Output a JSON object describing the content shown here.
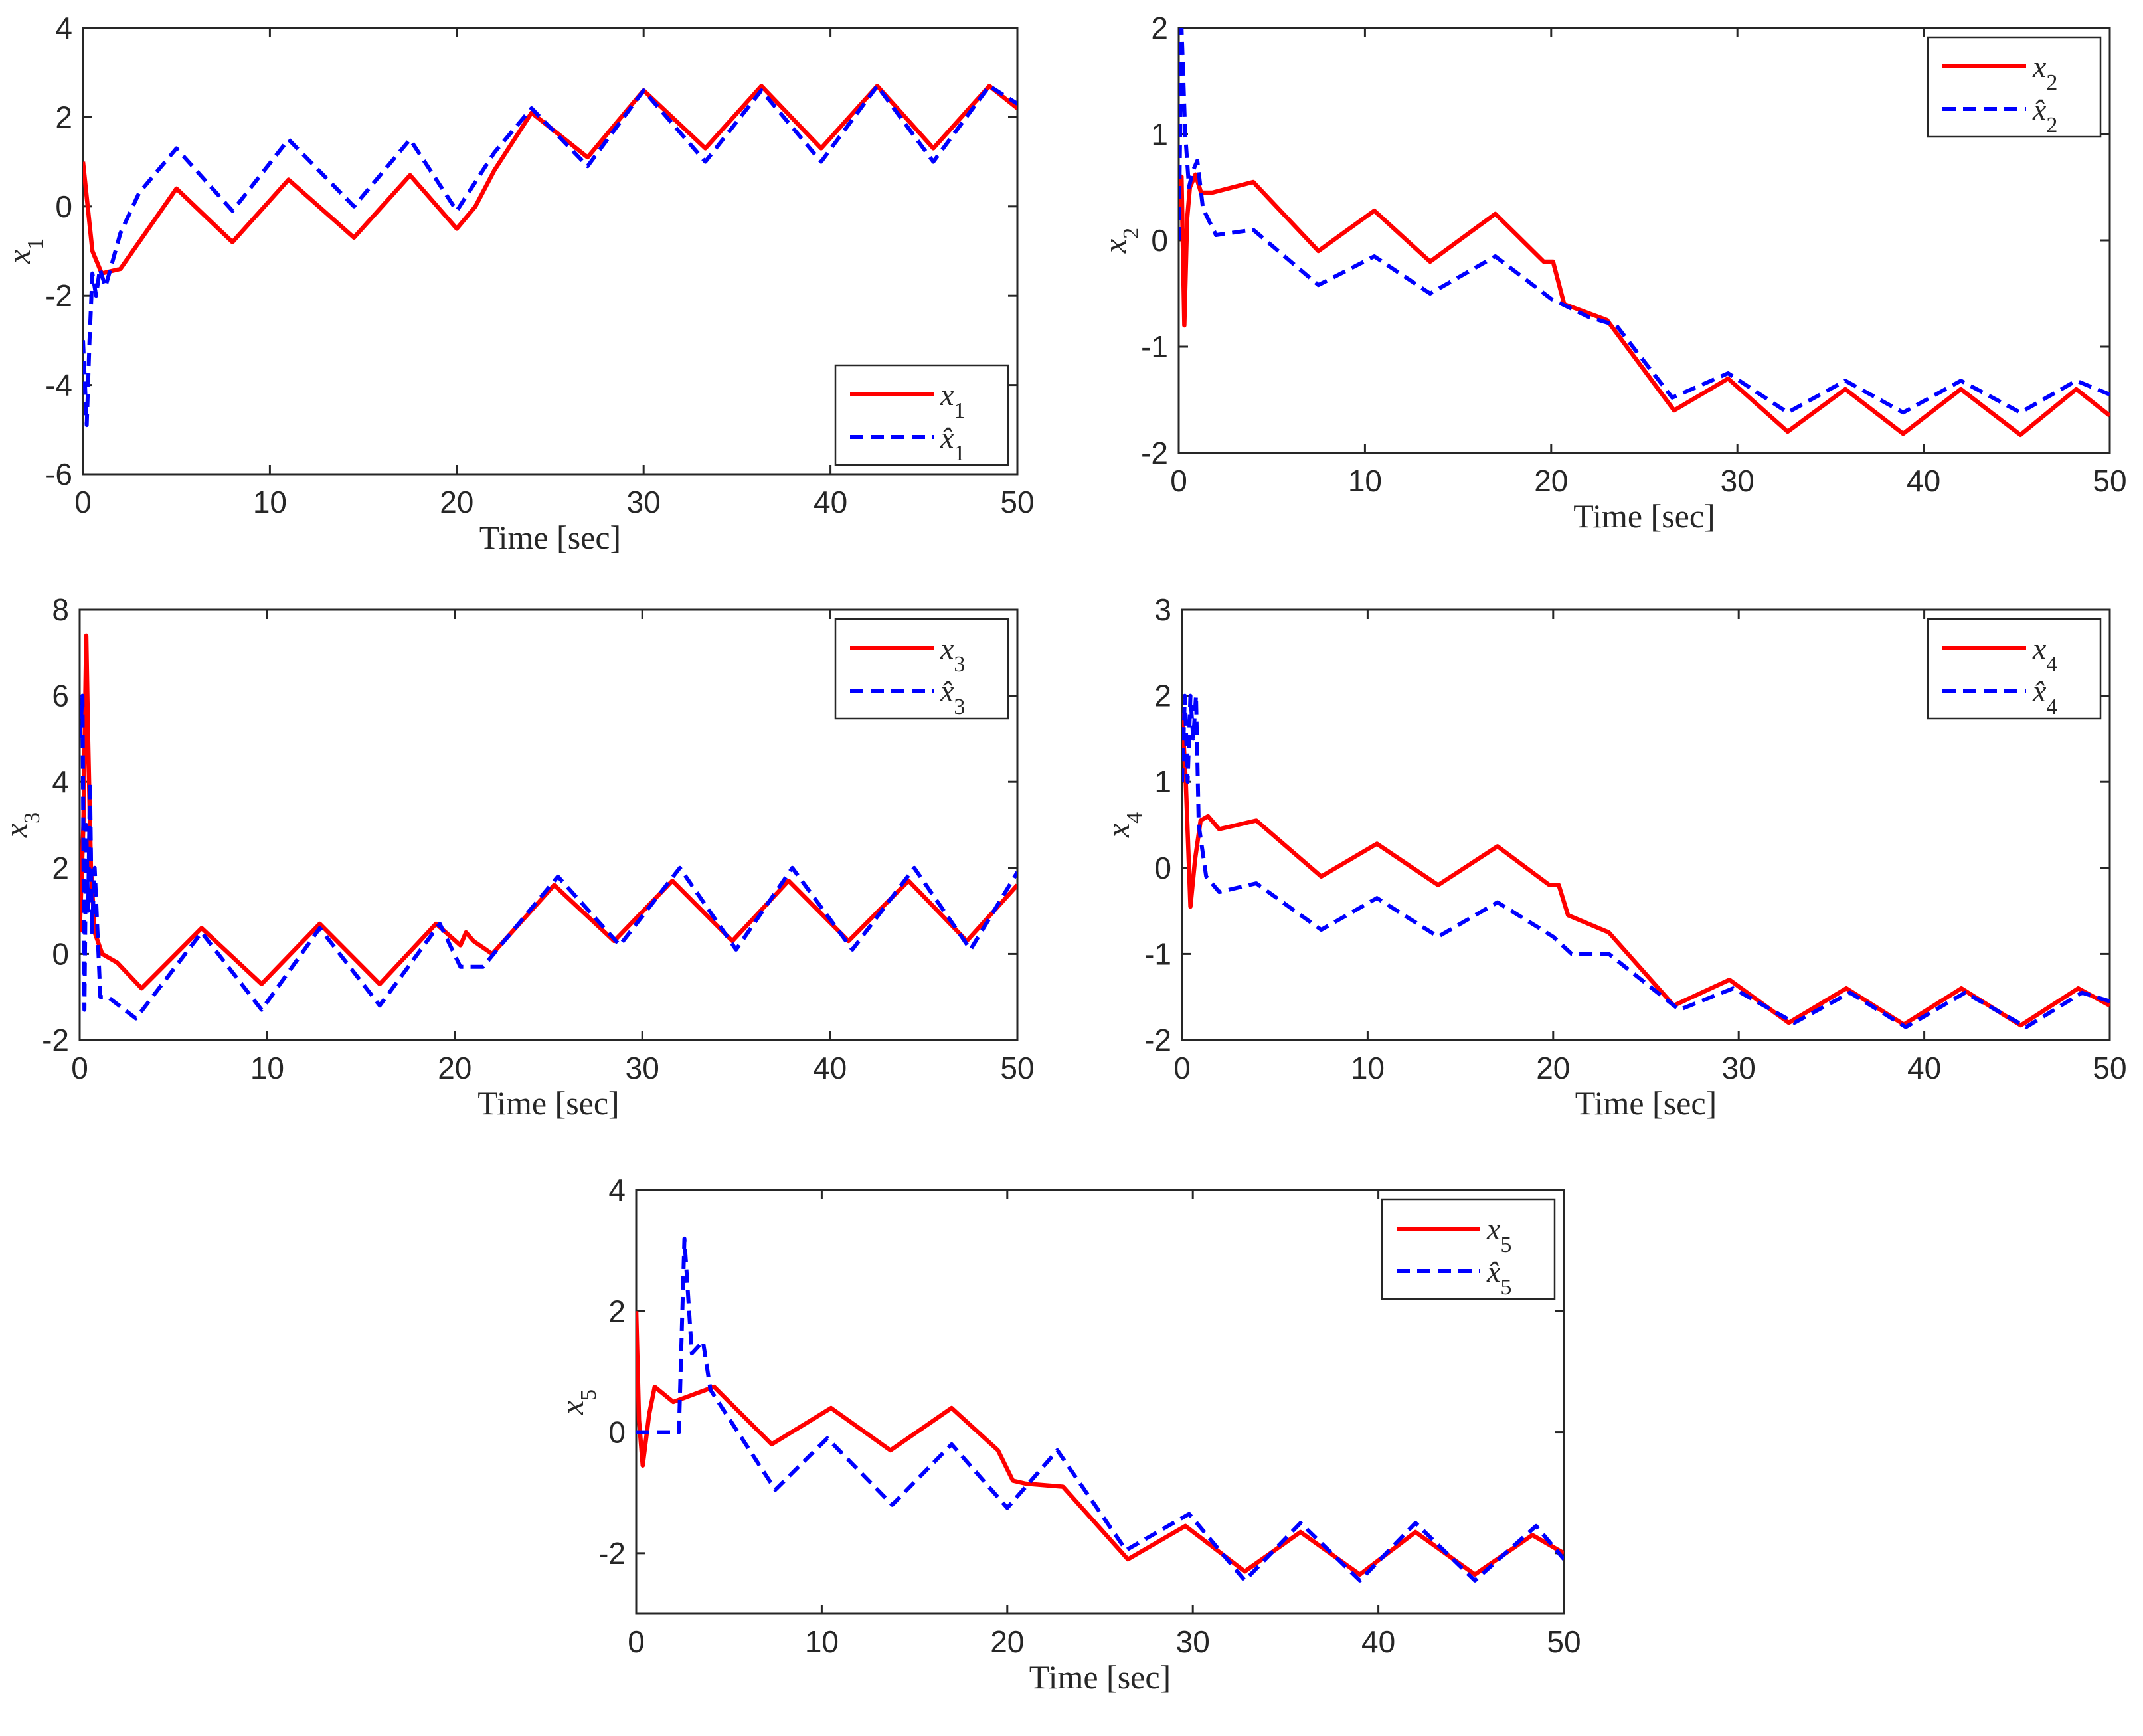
{
  "chart_data": [
    {
      "type": "line",
      "title": "",
      "xlabel": "Time [sec]",
      "ylabel": "x1",
      "xlim": [
        0,
        50
      ],
      "ylim": [
        -6,
        4
      ],
      "xticks": [
        "0",
        "10",
        "20",
        "30",
        "40",
        "50"
      ],
      "yticks": [
        "-6",
        "-4",
        "-2",
        "0",
        "2",
        "4"
      ],
      "legend_position": "bottom-right",
      "series": [
        {
          "name": "x1",
          "legend_label": "x_1",
          "color": "#ff0000",
          "style": "solid",
          "x": [
            0,
            0.5,
            1,
            2,
            3,
            5,
            8,
            11,
            14.5,
            17.5,
            20,
            21,
            22,
            24,
            27,
            30,
            33.3,
            36.3,
            39.5,
            42.5,
            45.5,
            48.5,
            50
          ],
          "y": [
            1,
            -1,
            -1.5,
            -1.4,
            -0.8,
            0.4,
            -0.8,
            0.6,
            -0.7,
            0.7,
            -0.5,
            0,
            0.8,
            2.1,
            1.1,
            2.6,
            1.3,
            2.7,
            1.3,
            2.7,
            1.3,
            2.7,
            2.2
          ]
        },
        {
          "name": "x1_hat",
          "legend_label": "x̂_1",
          "color": "#0000ff",
          "style": "dashed",
          "x": [
            0,
            0.2,
            0.35,
            0.5,
            0.7,
            0.9,
            1.2,
            2,
            3,
            5,
            8,
            11,
            14.5,
            17.5,
            20,
            22,
            24,
            27,
            30,
            33.3,
            36.3,
            39.5,
            42.5,
            45.5,
            48.5,
            50
          ],
          "y": [
            -3,
            -4.9,
            -3,
            -1.5,
            -2,
            -1.4,
            -1.8,
            -0.6,
            0.3,
            1.3,
            -0.1,
            1.5,
            0,
            1.5,
            -0.1,
            1.2,
            2.2,
            0.9,
            2.6,
            1,
            2.6,
            1,
            2.7,
            1,
            2.7,
            2.3
          ]
        }
      ]
    },
    {
      "type": "line",
      "title": "",
      "xlabel": "Time [sec]",
      "ylabel": "x2",
      "xlim": [
        0,
        50
      ],
      "ylim": [
        -2,
        2
      ],
      "xticks": [
        "0",
        "10",
        "20",
        "30",
        "40",
        "50"
      ],
      "yticks": [
        "-2",
        "-1",
        "0",
        "1",
        "2"
      ],
      "legend_position": "top-right",
      "series": [
        {
          "name": "x2",
          "legend_label": "x_2",
          "color": "#ff0000",
          "style": "solid",
          "x": [
            0,
            0.15,
            0.3,
            0.45,
            0.6,
            0.9,
            1.2,
            1.8,
            4,
            7.5,
            10.5,
            13.5,
            17,
            19.6,
            20.1,
            20.7,
            23,
            26.6,
            29.5,
            32.7,
            35.8,
            38.9,
            42,
            45.2,
            48.2,
            50
          ],
          "y": [
            0.2,
            0.6,
            -0.8,
            0.2,
            0.5,
            0.62,
            0.45,
            0.45,
            0.55,
            -0.1,
            0.28,
            -0.2,
            0.25,
            -0.2,
            -0.2,
            -0.6,
            -0.75,
            -1.6,
            -1.3,
            -1.8,
            -1.4,
            -1.82,
            -1.4,
            -1.83,
            -1.4,
            -1.65
          ]
        },
        {
          "name": "x2_hat",
          "legend_label": "x̂_2",
          "color": "#0000ff",
          "style": "dashed",
          "x": [
            0,
            0.15,
            0.35,
            0.55,
            0.75,
            1,
            1.3,
            2,
            4,
            7.5,
            10.5,
            13.5,
            17,
            20,
            22,
            23.5,
            26.5,
            29.5,
            32.7,
            35.8,
            38.9,
            42,
            45.2,
            48.2,
            50
          ],
          "y": [
            0,
            2,
            1,
            0.5,
            0.65,
            0.75,
            0.3,
            0.05,
            0.1,
            -0.42,
            -0.15,
            -0.5,
            -0.15,
            -0.55,
            -0.72,
            -0.8,
            -1.48,
            -1.25,
            -1.62,
            -1.32,
            -1.62,
            -1.32,
            -1.62,
            -1.32,
            -1.45
          ]
        }
      ]
    },
    {
      "type": "line",
      "title": "",
      "xlabel": "Time [sec]",
      "ylabel": "x3",
      "xlim": [
        0,
        50
      ],
      "ylim": [
        -2,
        8
      ],
      "xticks": [
        "0",
        "10",
        "20",
        "30",
        "40",
        "50"
      ],
      "yticks": [
        "-2",
        "0",
        "2",
        "4",
        "6",
        "8"
      ],
      "legend_position": "top-right",
      "series": [
        {
          "name": "x3",
          "legend_label": "x_3",
          "color": "#ff0000",
          "style": "solid",
          "x": [
            0,
            0.2,
            0.35,
            0.45,
            0.6,
            0.8,
            1.2,
            2,
            3.3,
            6.5,
            9.7,
            12.8,
            16,
            19,
            20.3,
            20.6,
            21,
            22,
            25.3,
            28.5,
            31.6,
            34.8,
            37.8,
            41,
            44.2,
            47.3,
            50
          ],
          "y": [
            0.5,
            3,
            7.4,
            5,
            2,
            0.5,
            0,
            -0.2,
            -0.8,
            0.6,
            -0.7,
            0.7,
            -0.7,
            0.7,
            0.2,
            0.5,
            0.3,
            0,
            1.6,
            0.3,
            1.7,
            0.3,
            1.7,
            0.3,
            1.7,
            0.3,
            1.6
          ]
        },
        {
          "name": "x3_hat",
          "legend_label": "x̂_3",
          "color": "#0000ff",
          "style": "dashed",
          "x": [
            0,
            0.15,
            0.25,
            0.35,
            0.45,
            0.55,
            0.65,
            0.8,
            1.1,
            1.5,
            3,
            6.5,
            9.7,
            12.8,
            16,
            19.2,
            20.3,
            21.5,
            25.5,
            28.8,
            32,
            35,
            38,
            41.2,
            44.5,
            47.5,
            50
          ],
          "y": [
            5,
            6,
            -1.3,
            3,
            1,
            4,
            0.5,
            2,
            -1,
            -1,
            -1.5,
            0.5,
            -1.3,
            0.6,
            -1.2,
            0.7,
            -0.3,
            -0.3,
            1.8,
            0.2,
            2,
            0.1,
            2,
            0.1,
            2,
            0.1,
            1.9
          ]
        }
      ]
    },
    {
      "type": "line",
      "title": "",
      "xlabel": "Time [sec]",
      "ylabel": "x4",
      "xlim": [
        0,
        50
      ],
      "ylim": [
        -2,
        3
      ],
      "xticks": [
        "0",
        "10",
        "20",
        "30",
        "40",
        "50"
      ],
      "yticks": [
        "-2",
        "-1",
        "0",
        "1",
        "2",
        "3"
      ],
      "legend_position": "top-right",
      "series": [
        {
          "name": "x4",
          "legend_label": "x_4",
          "color": "#ff0000",
          "style": "solid",
          "x": [
            0,
            0.2,
            0.45,
            0.7,
            1,
            1.4,
            2,
            4,
            7.5,
            10.5,
            13.8,
            17,
            19.8,
            20.3,
            20.8,
            23,
            26.5,
            29.5,
            32.7,
            35.8,
            38.9,
            42,
            45.2,
            48.3,
            50
          ],
          "y": [
            1.8,
            1,
            -0.45,
            0.1,
            0.55,
            0.6,
            0.45,
            0.55,
            -0.1,
            0.28,
            -0.2,
            0.25,
            -0.2,
            -0.2,
            -0.55,
            -0.75,
            -1.6,
            -1.3,
            -1.8,
            -1.4,
            -1.82,
            -1.4,
            -1.83,
            -1.4,
            -1.6
          ]
        },
        {
          "name": "x4_hat",
          "legend_label": "x̂_4",
          "color": "#0000ff",
          "style": "dashed",
          "x": [
            0,
            0.15,
            0.3,
            0.45,
            0.6,
            0.75,
            0.9,
            1.3,
            2,
            4,
            7.5,
            10.5,
            13.8,
            17,
            20,
            21,
            23,
            26.8,
            29.7,
            33,
            36,
            39,
            42.2,
            45.5,
            48.5,
            50
          ],
          "y": [
            1,
            2,
            1,
            2,
            1.5,
            2,
            0.5,
            -0.1,
            -0.28,
            -0.18,
            -0.72,
            -0.35,
            -0.8,
            -0.4,
            -0.8,
            -1,
            -1,
            -1.65,
            -1.4,
            -1.8,
            -1.45,
            -1.85,
            -1.45,
            -1.85,
            -1.45,
            -1.55
          ]
        }
      ]
    },
    {
      "type": "line",
      "title": "",
      "xlabel": "Time [sec]",
      "ylabel": "x5",
      "xlim": [
        0,
        50
      ],
      "ylim": [
        -3,
        4
      ],
      "xticks": [
        "0",
        "10",
        "20",
        "30",
        "40",
        "50"
      ],
      "yticks": [
        "-2",
        "0",
        "2",
        "4"
      ],
      "legend_position": "top-right",
      "series": [
        {
          "name": "x5",
          "legend_label": "x_5",
          "color": "#ff0000",
          "style": "solid",
          "x": [
            0,
            0.15,
            0.35,
            0.7,
            1,
            2,
            4.2,
            7.3,
            10.5,
            13.7,
            17,
            19.5,
            20.3,
            21,
            23,
            26.5,
            29.6,
            32.8,
            35.8,
            39,
            42,
            45.2,
            48.3,
            50
          ],
          "y": [
            2,
            0.2,
            -0.55,
            0.3,
            0.75,
            0.5,
            0.75,
            -0.2,
            0.4,
            -0.3,
            0.4,
            -0.3,
            -0.8,
            -0.85,
            -0.9,
            -2.1,
            -1.55,
            -2.3,
            -1.65,
            -2.35,
            -1.65,
            -2.35,
            -1.7,
            -2
          ]
        },
        {
          "name": "x5_hat",
          "legend_label": "x̂_5",
          "color": "#0000ff",
          "style": "dashed",
          "x": [
            0,
            2.3,
            2.6,
            3,
            3.6,
            4,
            7.5,
            10.3,
            13.8,
            17,
            20,
            21,
            22.7,
            26.4,
            29.8,
            32.8,
            35.8,
            39,
            42,
            45.2,
            48.5,
            50
          ],
          "y": [
            0,
            0,
            3.2,
            1.3,
            1.5,
            0.7,
            -0.95,
            -0.1,
            -1.2,
            -0.2,
            -1.25,
            -0.9,
            -0.3,
            -1.95,
            -1.35,
            -2.45,
            -1.5,
            -2.45,
            -1.5,
            -2.45,
            -1.55,
            -2.1
          ]
        }
      ]
    }
  ]
}
